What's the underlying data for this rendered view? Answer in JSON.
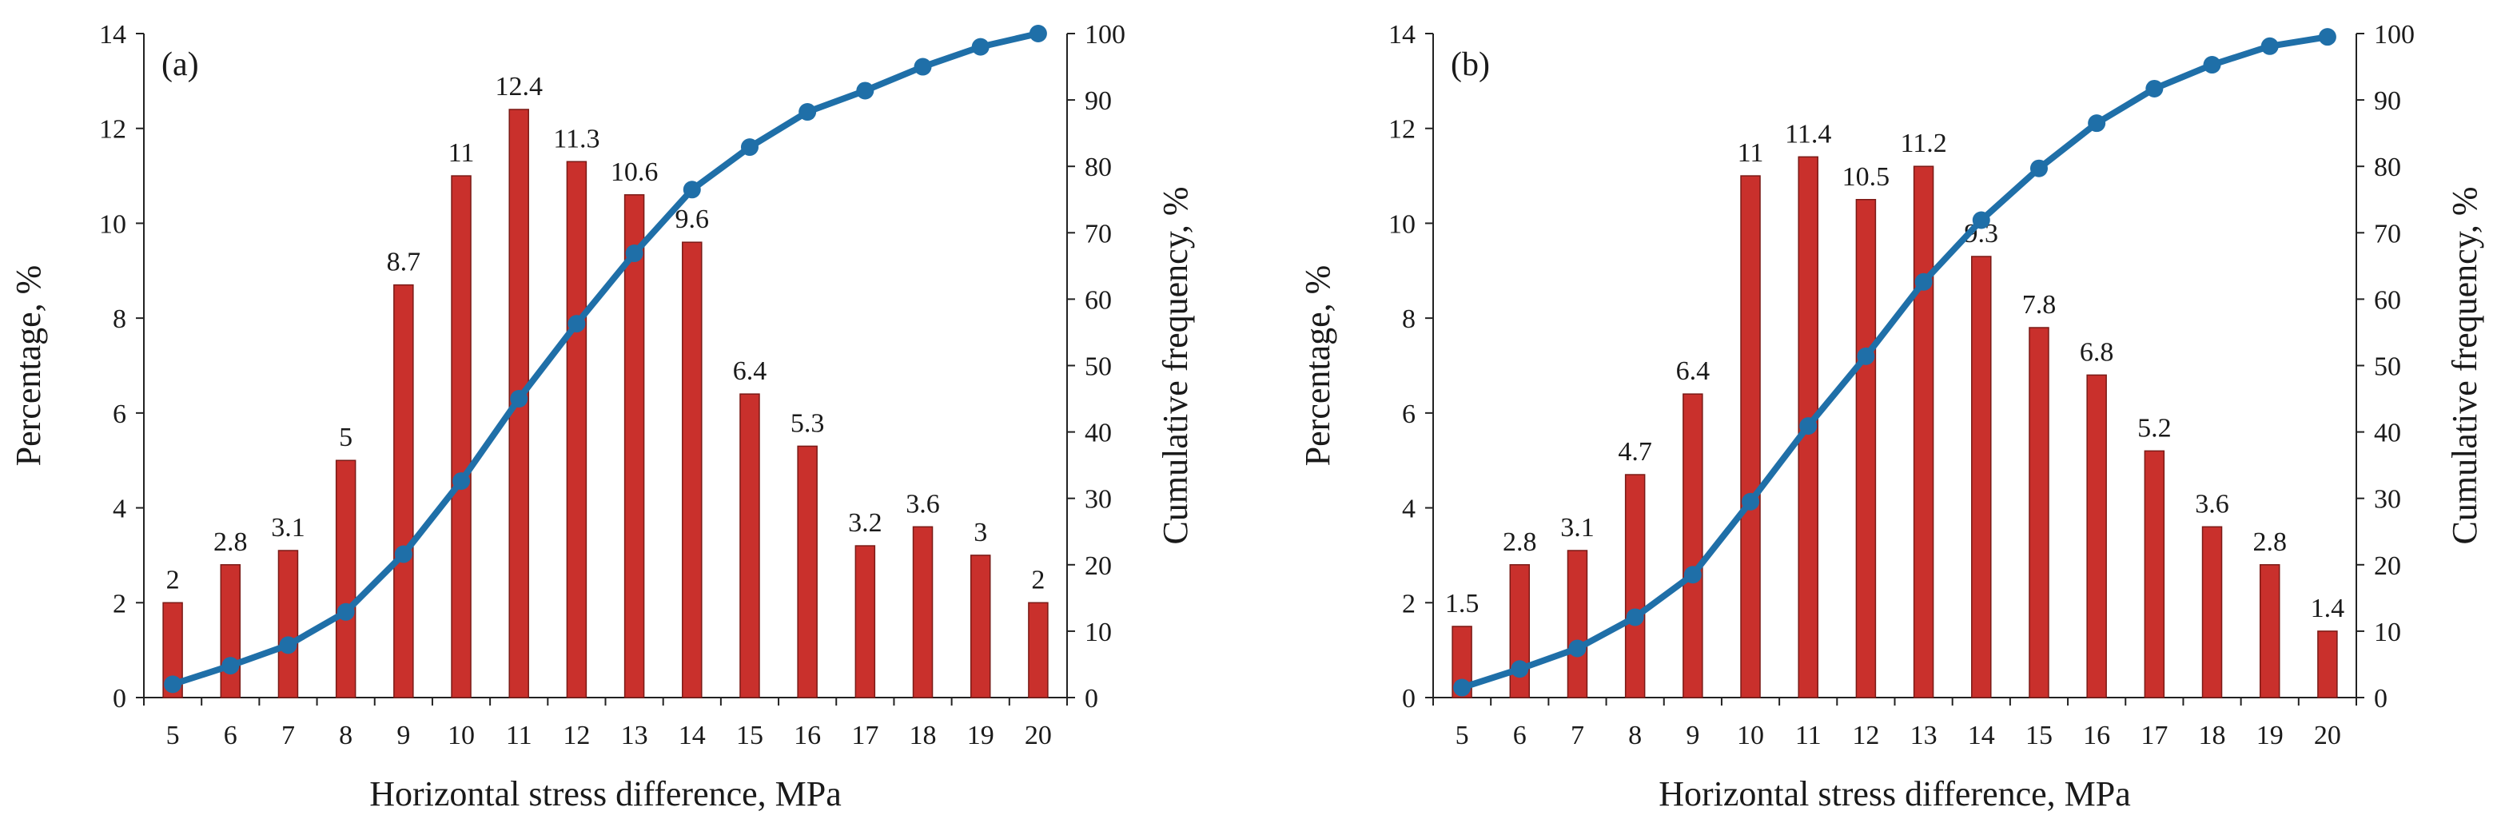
{
  "chart_data": [
    {
      "type": "bar",
      "panel_label": "(a)",
      "categories": [
        "5",
        "6",
        "7",
        "8",
        "9",
        "10",
        "11",
        "12",
        "13",
        "14",
        "15",
        "16",
        "17",
        "18",
        "19",
        "20"
      ],
      "series": [
        {
          "name": "Percentage",
          "axis": "left",
          "type": "bar",
          "color": "#c9302c",
          "values": [
            2,
            2.8,
            3.1,
            5,
            8.7,
            11,
            12.4,
            11.3,
            10.6,
            9.6,
            6.4,
            5.3,
            3.2,
            3.6,
            3,
            2
          ],
          "labels": [
            "2",
            "2.8",
            "3.1",
            "5",
            "8.7",
            "11",
            "12.4",
            "11.3",
            "10.6",
            "9.6",
            "6.4",
            "5.3",
            "3.2",
            "3.6",
            "3",
            "2"
          ]
        },
        {
          "name": "Cumulative frequency",
          "axis": "right",
          "type": "line",
          "color": "#1f6fa8",
          "values": [
            2,
            4.8,
            7.9,
            12.9,
            21.6,
            32.6,
            45,
            56.3,
            66.9,
            76.5,
            82.9,
            88.2,
            91.4,
            95,
            98,
            100
          ]
        }
      ],
      "xlabel": "Horizontal stress difference, MPa",
      "ylabel": "Percentage, %",
      "y2label": "Cumulative frequency, %",
      "ylim": [
        0,
        14
      ],
      "y2lim": [
        0,
        100
      ],
      "yticks": [
        "0",
        "2",
        "4",
        "6",
        "8",
        "10",
        "12",
        "14"
      ],
      "y2ticks": [
        "0",
        "10",
        "20",
        "30",
        "40",
        "50",
        "60",
        "70",
        "80",
        "90",
        "100"
      ]
    },
    {
      "type": "bar",
      "panel_label": "(b)",
      "categories": [
        "5",
        "6",
        "7",
        "8",
        "9",
        "10",
        "11",
        "12",
        "13",
        "14",
        "15",
        "16",
        "17",
        "18",
        "19",
        "20"
      ],
      "series": [
        {
          "name": "Percentage",
          "axis": "left",
          "type": "bar",
          "color": "#c9302c",
          "values": [
            1.5,
            2.8,
            3.1,
            4.7,
            6.4,
            11,
            11.4,
            10.5,
            11.2,
            9.3,
            7.8,
            6.8,
            5.2,
            3.6,
            2.8,
            1.4
          ],
          "labels": [
            "1.5",
            "2.8",
            "3.1",
            "4.7",
            "6.4",
            "11",
            "11.4",
            "10.5",
            "11.2",
            "9.3",
            "7.8",
            "6.8",
            "5.2",
            "3.6",
            "2.8",
            "1.4"
          ]
        },
        {
          "name": "Cumulative frequency",
          "axis": "right",
          "type": "line",
          "color": "#1f6fa8",
          "values": [
            1.5,
            4.3,
            7.4,
            12.1,
            18.5,
            29.5,
            40.9,
            51.4,
            62.6,
            71.9,
            79.7,
            86.5,
            91.7,
            95.3,
            98.1,
            99.5
          ]
        }
      ],
      "xlabel": "Horizontal stress difference, MPa",
      "ylabel": "Percentage, %",
      "y2label": "Cumulative frequency, %",
      "ylim": [
        0,
        14
      ],
      "y2lim": [
        0,
        100
      ],
      "yticks": [
        "0",
        "2",
        "4",
        "6",
        "8",
        "10",
        "12",
        "14"
      ],
      "y2ticks": [
        "0",
        "10",
        "20",
        "30",
        "40",
        "50",
        "60",
        "70",
        "80",
        "90",
        "100"
      ]
    }
  ]
}
